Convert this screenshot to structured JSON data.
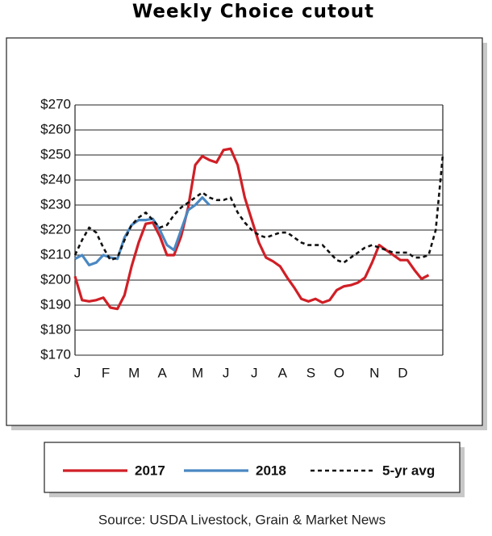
{
  "chart_data": {
    "type": "line",
    "title": "Weekly Choice cutout",
    "source": "Source: USDA Livestock, Grain & Market News",
    "categories": [
      "J",
      null,
      null,
      null,
      "F",
      null,
      null,
      null,
      "M",
      null,
      null,
      null,
      "A",
      null,
      null,
      null,
      null,
      "M",
      null,
      null,
      null,
      "J",
      null,
      null,
      null,
      "J",
      null,
      null,
      null,
      "A",
      null,
      null,
      null,
      "S",
      null,
      null,
      null,
      "O",
      null,
      null,
      null,
      null,
      "N",
      null,
      null,
      null,
      "D",
      null,
      null,
      null,
      null,
      null,
      null
    ],
    "series": [
      {
        "name": "2017",
        "color": "#d01f26",
        "dash": false,
        "values": [
          201.5,
          192,
          191.5,
          192,
          193,
          189,
          188.5,
          194,
          205.5,
          215,
          222.5,
          223,
          217.5,
          210,
          210,
          217.5,
          229,
          246,
          249.5,
          248,
          247,
          252,
          252.5,
          246,
          233,
          224,
          215,
          209,
          207.5,
          205.5,
          201,
          197,
          192.5,
          191.5,
          192.5,
          191,
          192,
          196,
          197.5,
          198,
          199,
          201,
          207,
          214,
          212,
          210,
          208,
          208,
          204,
          200.5,
          202,
          null,
          null
        ]
      },
      {
        "name": "2018",
        "color": "#4a88c2",
        "dash": false,
        "values": [
          208.5,
          210,
          206,
          207,
          210,
          209,
          208.5,
          217,
          222,
          224,
          224,
          224.5,
          220,
          214,
          212,
          220,
          228,
          230,
          233,
          230,
          null,
          null,
          null,
          null,
          null,
          null,
          null,
          null,
          null,
          null,
          null,
          null,
          null,
          null,
          null,
          null,
          null,
          null,
          null,
          null,
          null,
          null,
          null,
          null,
          null,
          null,
          null,
          null,
          null,
          null,
          null,
          null,
          null
        ]
      },
      {
        "name": "5-yr avg",
        "color": "#111111",
        "dash": true,
        "values": [
          210,
          216,
          221,
          219,
          213,
          208,
          209,
          216,
          222,
          225,
          227,
          224,
          221,
          222,
          226,
          229,
          231,
          233,
          235,
          233,
          232,
          232,
          233,
          227,
          223,
          220,
          218,
          217,
          218,
          219,
          219,
          217,
          215,
          214,
          214,
          214,
          211,
          208,
          207,
          209,
          211,
          213,
          214,
          213,
          212,
          211,
          211,
          211,
          209,
          209,
          210,
          220,
          250
        ]
      }
    ],
    "ylim": [
      170,
      270
    ],
    "yticks": [
      {
        "value": 170,
        "label": "$170"
      },
      {
        "value": 180,
        "label": "$180"
      },
      {
        "value": 190,
        "label": "$190"
      },
      {
        "value": 200,
        "label": "$200"
      },
      {
        "value": 210,
        "label": "$210"
      },
      {
        "value": 220,
        "label": "$220"
      },
      {
        "value": 230,
        "label": "$230"
      },
      {
        "value": 240,
        "label": "$240"
      },
      {
        "value": 250,
        "label": "$250"
      },
      {
        "value": 260,
        "label": "$260"
      },
      {
        "value": 270,
        "label": "$270"
      }
    ],
    "grid": true
  }
}
